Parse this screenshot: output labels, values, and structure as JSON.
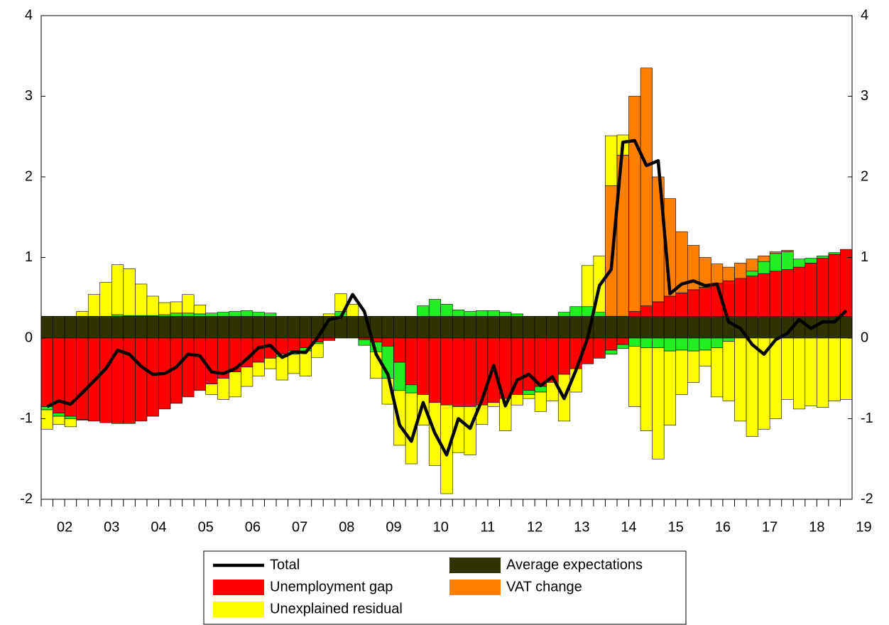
{
  "chart_data": {
    "type": "bar",
    "categories": [
      "02",
      null,
      null,
      null,
      "03",
      null,
      null,
      null,
      "04",
      null,
      null,
      null,
      "05",
      null,
      null,
      null,
      "06",
      null,
      null,
      null,
      "07",
      null,
      null,
      null,
      "08",
      null,
      null,
      null,
      "09",
      null,
      null,
      null,
      "10",
      null,
      null,
      null,
      "11",
      null,
      null,
      null,
      "12",
      null,
      null,
      null,
      "13",
      null,
      null,
      null,
      "14",
      null,
      null,
      null,
      "15",
      null,
      null,
      null,
      "16",
      null,
      null,
      null,
      "17",
      null,
      null,
      null,
      "18",
      null,
      null,
      null,
      "19"
    ],
    "ylim": [
      -2,
      4
    ],
    "yticks": [
      -2,
      -1,
      0,
      1,
      2,
      3,
      4
    ],
    "series": [
      {
        "name": "Total",
        "type": "line",
        "color": "#000000",
        "values": [
          -0.85,
          -0.78,
          -0.82,
          -0.68,
          -0.53,
          -0.38,
          -0.15,
          -0.2,
          -0.35,
          -0.45,
          -0.44,
          -0.36,
          -0.2,
          -0.22,
          -0.42,
          -0.44,
          -0.38,
          -0.26,
          -0.12,
          -0.09,
          -0.24,
          -0.17,
          -0.18,
          0,
          0.23,
          0.26,
          0.54,
          0.33,
          -0.2,
          -0.45,
          -1.08,
          -1.28,
          -0.8,
          -1.18,
          -1.45,
          -1.0,
          -1.12,
          -0.77,
          -0.34,
          -0.84,
          -0.52,
          -0.45,
          -0.59,
          -0.48,
          -0.75,
          -0.4,
          0.0,
          0.65,
          0.85,
          2.43,
          2.45,
          2.14,
          2.2,
          0.55,
          0.67,
          0.71,
          0.65,
          0.67,
          0.2,
          0.12,
          -0.08,
          -0.2,
          -0.02,
          0.06,
          0.23,
          0.12,
          0.2,
          0.2,
          0.34
        ]
      },
      {
        "name": "Average expectations",
        "color": "#2e3300",
        "values": [
          0.27,
          0.27,
          0.27,
          0.27,
          0.27,
          0.27,
          0.27,
          0.27,
          0.27,
          0.27,
          0.27,
          0.27,
          0.27,
          0.27,
          0.27,
          0.27,
          0.27,
          0.27,
          0.27,
          0.27,
          0.27,
          0.27,
          0.27,
          0.27,
          0.27,
          0.27,
          0.27,
          0.27,
          0.27,
          0.27,
          0.27,
          0.27,
          0.27,
          0.27,
          0.27,
          0.27,
          0.27,
          0.27,
          0.27,
          0.27,
          0.27,
          0.27,
          0.27,
          0.27,
          0.27,
          0.27,
          0.27,
          0.27,
          0.27,
          0.27,
          0.27,
          0.27,
          0.27,
          0.27,
          0.27,
          0.27,
          0.27,
          0.27,
          0.27,
          0.27,
          0.27,
          0.27,
          0.27,
          0.27,
          0.27,
          0.27,
          0.27,
          0.27,
          0.27
        ]
      },
      {
        "name": "Unemployment gap",
        "color": "#ff0000",
        "values": [
          -0.85,
          -0.93,
          -0.97,
          -1.01,
          -1.03,
          -1.05,
          -1.06,
          -1.06,
          -1.03,
          -0.97,
          -0.88,
          -0.81,
          -0.73,
          -0.65,
          -0.57,
          -0.5,
          -0.42,
          -0.36,
          -0.3,
          -0.25,
          -0.2,
          -0.16,
          -0.12,
          -0.05,
          -0.03,
          0,
          0,
          -0.02,
          -0.05,
          -0.1,
          -0.3,
          -0.58,
          -0.7,
          -0.8,
          -0.83,
          -0.85,
          -0.85,
          -0.83,
          -0.8,
          -0.75,
          -0.7,
          -0.65,
          -0.6,
          -0.55,
          -0.45,
          -0.38,
          -0.32,
          -0.25,
          -0.15,
          -0.08,
          0.06,
          0.13,
          0.18,
          0.25,
          0.29,
          0.33,
          0.36,
          0.41,
          0.44,
          0.47,
          0.5,
          0.53,
          0.56,
          0.58,
          0.61,
          0.66,
          0.72,
          0.77,
          0.83
        ]
      },
      {
        "color": "#22ee22",
        "values": [
          -0.04,
          -0.04,
          -0.03,
          -0.01,
          0,
          0,
          0.02,
          0.01,
          0.01,
          0.01,
          0.02,
          0.04,
          0.04,
          0.03,
          0.04,
          0.05,
          0.06,
          0.07,
          0.05,
          0.04,
          -0.03,
          -0.04,
          -0.04,
          -0.02,
          0,
          0.06,
          0,
          -0.07,
          -0.12,
          -0.4,
          -0.35,
          -0.1,
          0.13,
          0.21,
          0.15,
          0.08,
          0.06,
          0.07,
          0.07,
          0.05,
          0.03,
          -0.05,
          -0.07,
          0,
          0.05,
          0.12,
          0.12,
          0.05,
          -0.05,
          -0.05,
          -0.1,
          -0.12,
          -0.12,
          -0.16,
          -0.15,
          -0.16,
          -0.15,
          -0.12,
          -0.04,
          0,
          0.06,
          0.15,
          0.22,
          0.22,
          0.1,
          0.06,
          0.03,
          0.02,
          0
        ]
      },
      {
        "name": "VAT change",
        "color": "#ff8000",
        "values": [
          0,
          0,
          0,
          0,
          0,
          0,
          0,
          0,
          0,
          0,
          0,
          0,
          0,
          0,
          0,
          0,
          0,
          0,
          0,
          0,
          0,
          0,
          0,
          0,
          0,
          0,
          0,
          0,
          0,
          0,
          0,
          0,
          0,
          0,
          0,
          0,
          0,
          0,
          0,
          0,
          0,
          0,
          0,
          0,
          0,
          0,
          0,
          0,
          1.62,
          2.0,
          2.67,
          2.95,
          1.55,
          1.21,
          0.76,
          0.55,
          0.37,
          0.24,
          0.17,
          0.19,
          0.15,
          0.07,
          0.02,
          0.02,
          0,
          0,
          0,
          0,
          0
        ]
      },
      {
        "name": "Unexplained residual",
        "color": "#ffff00",
        "values": [
          -0.24,
          -0.1,
          -0.1,
          0.06,
          0.27,
          0.42,
          0.62,
          0.58,
          0.39,
          0.24,
          0.15,
          0.14,
          0.23,
          0.11,
          -0.13,
          -0.26,
          -0.31,
          -0.24,
          -0.17,
          -0.13,
          -0.29,
          -0.24,
          -0.31,
          -0.17,
          0.03,
          0.22,
          0.15,
          0,
          -0.33,
          -0.32,
          -0.68,
          -0.88,
          -0.38,
          -0.78,
          -1.1,
          -0.57,
          -0.6,
          -0.24,
          -0.05,
          -0.4,
          -0.13,
          -0.05,
          -0.24,
          -0.23,
          -0.58,
          -0.29,
          0.51,
          0.7,
          0.62,
          0.25,
          -0.75,
          -1.03,
          -1.38,
          -0.92,
          -0.55,
          -0.39,
          -0.2,
          -0.61,
          -0.74,
          -1.03,
          -1.22,
          -1.13,
          -1.0,
          -0.76,
          -0.88,
          -0.84,
          -0.86,
          -0.78,
          -0.76
        ]
      }
    ]
  }
}
